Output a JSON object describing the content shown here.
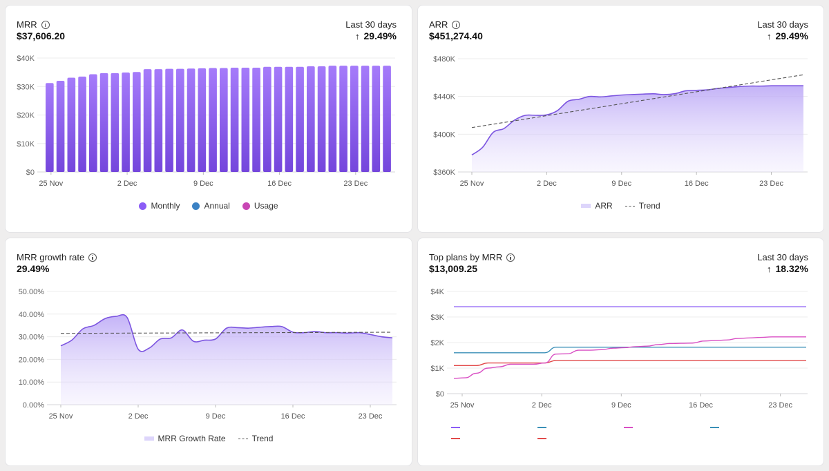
{
  "cards": {
    "mrr": {
      "title": "MRR",
      "value": "$37,606.20",
      "period": "Last 30 days",
      "change": "29.49%"
    },
    "arr": {
      "title": "ARR",
      "value": "$451,274.40",
      "period": "Last 30 days",
      "change": "29.49%"
    },
    "growth": {
      "title": "MRR growth rate",
      "value": "29.49%"
    },
    "plans": {
      "title": "Top plans by MRR",
      "value": "$13,009.25",
      "period": "Last 30 days",
      "change": "18.32%"
    }
  },
  "legends": {
    "mrr": [
      {
        "label": "Monthly",
        "color": "#8b5cf6"
      },
      {
        "label": "Annual",
        "color": "#3b82c4"
      },
      {
        "label": "Usage",
        "color": "#c846b4"
      }
    ],
    "arr": [
      {
        "label": "ARR"
      },
      {
        "label": "Trend"
      }
    ],
    "growth": [
      {
        "label": "MRR Growth Rate"
      },
      {
        "label": "Trend"
      }
    ]
  },
  "chart_data": [
    {
      "id": "mrr",
      "type": "bar",
      "x_tick_labels": [
        "25 Nov",
        "2 Dec",
        "9 Dec",
        "16 Dec",
        "23 Dec"
      ],
      "y_tick_labels": [
        "$0",
        "$10K",
        "$20K",
        "$30K",
        "$40K"
      ],
      "ylim": [
        0,
        40000
      ],
      "series": [
        {
          "name": "Monthly",
          "color": "#8b5cf6",
          "values": [
            31200,
            32000,
            33100,
            33500,
            34300,
            34700,
            34700,
            34900,
            35100,
            36100,
            36100,
            36200,
            36200,
            36300,
            36400,
            36500,
            36500,
            36600,
            36600,
            36600,
            36900,
            36900,
            36900,
            36900,
            37100,
            37100,
            37300,
            37300,
            37300,
            37300,
            37300,
            37300
          ]
        }
      ],
      "legend_position": "bottom"
    },
    {
      "id": "arr",
      "type": "area",
      "x_tick_labels": [
        "25 Nov",
        "2 Dec",
        "9 Dec",
        "16 Dec",
        "23 Dec"
      ],
      "y_tick_labels": [
        "$360K",
        "$400K",
        "$440K",
        "$480K"
      ],
      "ylim": [
        360000,
        480000
      ],
      "series": [
        {
          "name": "ARR",
          "color": "#7c55e0",
          "values": [
            378000,
            386000,
            402000,
            406000,
            415000,
            420000,
            420000,
            420500,
            425000,
            435000,
            437000,
            440000,
            439500,
            440500,
            441500,
            442000,
            442500,
            442800,
            442000,
            443000,
            446000,
            446500,
            447000,
            448500,
            449500,
            450500,
            451000,
            451000,
            451300,
            451300,
            451300,
            451300
          ]
        },
        {
          "name": "Trend",
          "color": "#555555",
          "dashed": true,
          "values_endpoints": [
            407000,
            463000
          ]
        }
      ],
      "legend_position": "bottom"
    },
    {
      "id": "growth",
      "type": "area",
      "x_tick_labels": [
        "25 Nov",
        "2 Dec",
        "9 Dec",
        "16 Dec",
        "23 Dec"
      ],
      "y_tick_labels": [
        "0.00%",
        "10.00%",
        "20.00%",
        "30.00%",
        "40.00%",
        "50.00%"
      ],
      "ylim": [
        0,
        50
      ],
      "series": [
        {
          "name": "MRR Growth Rate",
          "color": "#7c55e0",
          "values": [
            26,
            28.5,
            33.5,
            35,
            38,
            39,
            38.5,
            24.5,
            25,
            29,
            29.5,
            33,
            28,
            28.5,
            29,
            33.8,
            34,
            33.8,
            34.2,
            34.5,
            34.5,
            32,
            31.8,
            32.3,
            31.8,
            31.8,
            31.6,
            31.8,
            31,
            30,
            29.5
          ]
        },
        {
          "name": "Trend",
          "color": "#555555",
          "dashed": true,
          "values_endpoints": [
            31.5,
            32
          ]
        }
      ],
      "legend_position": "bottom"
    },
    {
      "id": "plans",
      "type": "line",
      "x_tick_labels": [
        "25 Nov",
        "2 Dec",
        "9 Dec",
        "16 Dec",
        "23 Dec"
      ],
      "y_tick_labels": [
        "$0",
        "$1K",
        "$2K",
        "$3K",
        "$4K"
      ],
      "ylim": [
        0,
        4000
      ],
      "series": [
        {
          "color": "#8b5cf6",
          "values": [
            3400,
            3400,
            3400,
            3400,
            3400,
            3400,
            3400,
            3400,
            3400,
            3400,
            3400,
            3400,
            3400,
            3400,
            3400,
            3400,
            3400,
            3400,
            3400,
            3400,
            3400,
            3400,
            3400,
            3400,
            3400,
            3400,
            3400,
            3400,
            3400,
            3400,
            3400,
            3400
          ]
        },
        {
          "color": "#3a8fb7",
          "values": [
            1600,
            1600,
            1600,
            1600,
            1600,
            1600,
            1600,
            1600,
            1600,
            1820,
            1820,
            1820,
            1820,
            1820,
            1820,
            1820,
            1820,
            1820,
            1820,
            1820,
            1820,
            1820,
            1820,
            1820,
            1820,
            1820,
            1820,
            1820,
            1820,
            1820,
            1820,
            1820
          ]
        },
        {
          "color": "#e24a4a",
          "values": [
            1100,
            1100,
            1100,
            1200,
            1200,
            1200,
            1200,
            1200,
            1200,
            1300,
            1300,
            1300,
            1300,
            1300,
            1300,
            1300,
            1300,
            1300,
            1300,
            1300,
            1300,
            1300,
            1300,
            1300,
            1300,
            1300,
            1300,
            1300,
            1300,
            1300,
            1300,
            1300
          ]
        },
        {
          "color": "#d94fc4",
          "values": [
            600,
            620,
            800,
            1000,
            1050,
            1150,
            1150,
            1150,
            1200,
            1550,
            1560,
            1700,
            1700,
            1720,
            1780,
            1800,
            1840,
            1860,
            1920,
            1960,
            1970,
            1980,
            2060,
            2080,
            2100,
            2160,
            2180,
            2200,
            2220,
            2220,
            2220,
            2220
          ]
        }
      ],
      "legend_swatches": [
        {
          "color": "#8b5cf6",
          "row": 0,
          "col": 0
        },
        {
          "color": "#3a8fb7",
          "row": 0,
          "col": 1
        },
        {
          "color": "#d94fc4",
          "row": 0,
          "col": 2
        },
        {
          "color": "#3a8fb7",
          "row": 0,
          "col": 3
        },
        {
          "color": "#e24a4a",
          "row": 1,
          "col": 0
        },
        {
          "color": "#e24a4a",
          "row": 1,
          "col": 1
        }
      ]
    }
  ]
}
